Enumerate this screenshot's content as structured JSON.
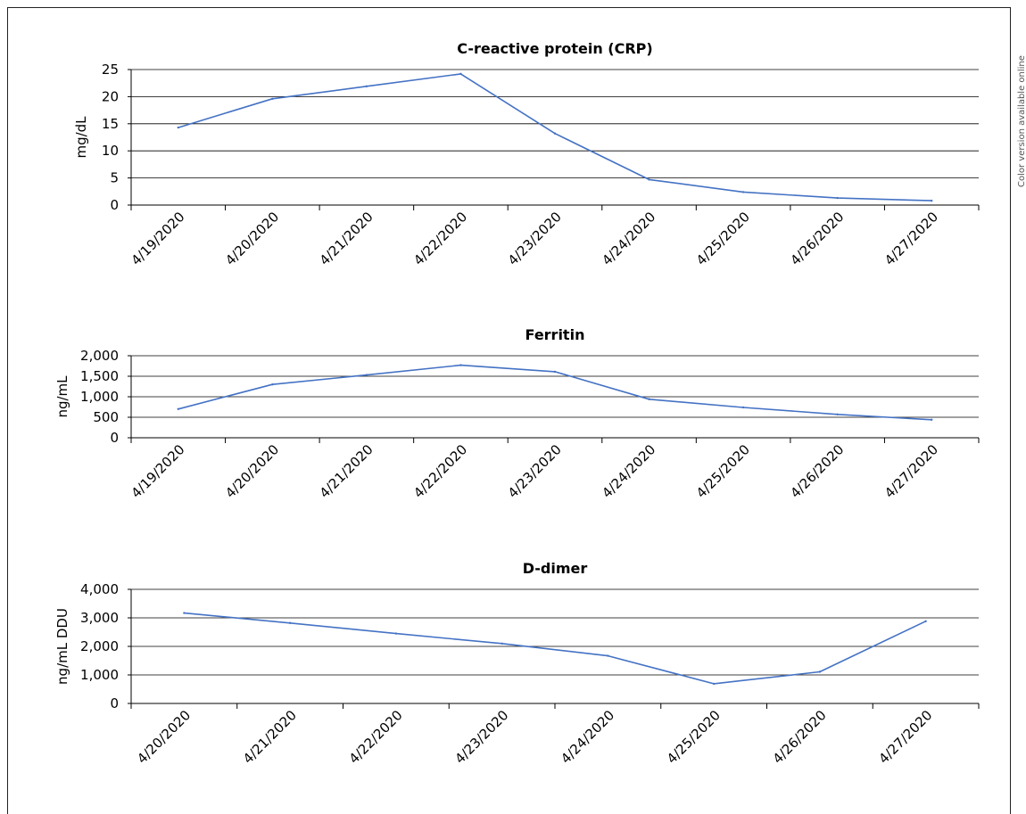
{
  "side_note": "Color version available online",
  "line_color": "#4472C4",
  "chart_data": [
    {
      "type": "line",
      "title": "C-reactive protein (CRP)",
      "xlabel": "",
      "ylabel": "mg/dL",
      "ylim": [
        0,
        25
      ],
      "yticks": [
        "0",
        "5",
        "10",
        "15",
        "20",
        "25"
      ],
      "grid": true,
      "categories": [
        "4/19/2020",
        "4/20/2020",
        "4/21/2020",
        "4/22/2020",
        "4/23/2020",
        "4/24/2020",
        "4/25/2020",
        "4/26/2020",
        "4/27/2020"
      ],
      "series": [
        {
          "values": [
            14.3,
            19.6,
            21.9,
            24.2,
            13.2,
            4.7,
            2.4,
            1.3,
            0.8
          ]
        }
      ]
    },
    {
      "type": "line",
      "title": "Ferritin",
      "xlabel": "",
      "ylabel": "ng/mL",
      "ylim": [
        0,
        2000
      ],
      "yticks": [
        "0",
        "500",
        "1,000",
        "1,500",
        "2,000"
      ],
      "grid": true,
      "categories": [
        "4/19/2020",
        "4/20/2020",
        "4/21/2020",
        "4/22/2020",
        "4/23/2020",
        "4/24/2020",
        "4/25/2020",
        "4/26/2020",
        "4/27/2020"
      ],
      "series": [
        {
          "values": [
            700,
            1300,
            1530,
            1770,
            1610,
            940,
            740,
            570,
            440
          ]
        }
      ]
    },
    {
      "type": "line",
      "title": "D-dimer",
      "xlabel": "",
      "ylabel": "ng/mL DDU",
      "ylim": [
        0,
        4000
      ],
      "yticks": [
        "0",
        "1,000",
        "2,000",
        "3,000",
        "4,000"
      ],
      "grid": true,
      "categories": [
        "4/20/2020",
        "4/21/2020",
        "4/22/2020",
        "4/23/2020",
        "4/24/2020",
        "4/25/2020",
        "4/26/2020",
        "4/27/2020"
      ],
      "series": [
        {
          "values": [
            3170,
            2820,
            2450,
            2100,
            1670,
            690,
            1110,
            2880
          ]
        }
      ]
    }
  ]
}
